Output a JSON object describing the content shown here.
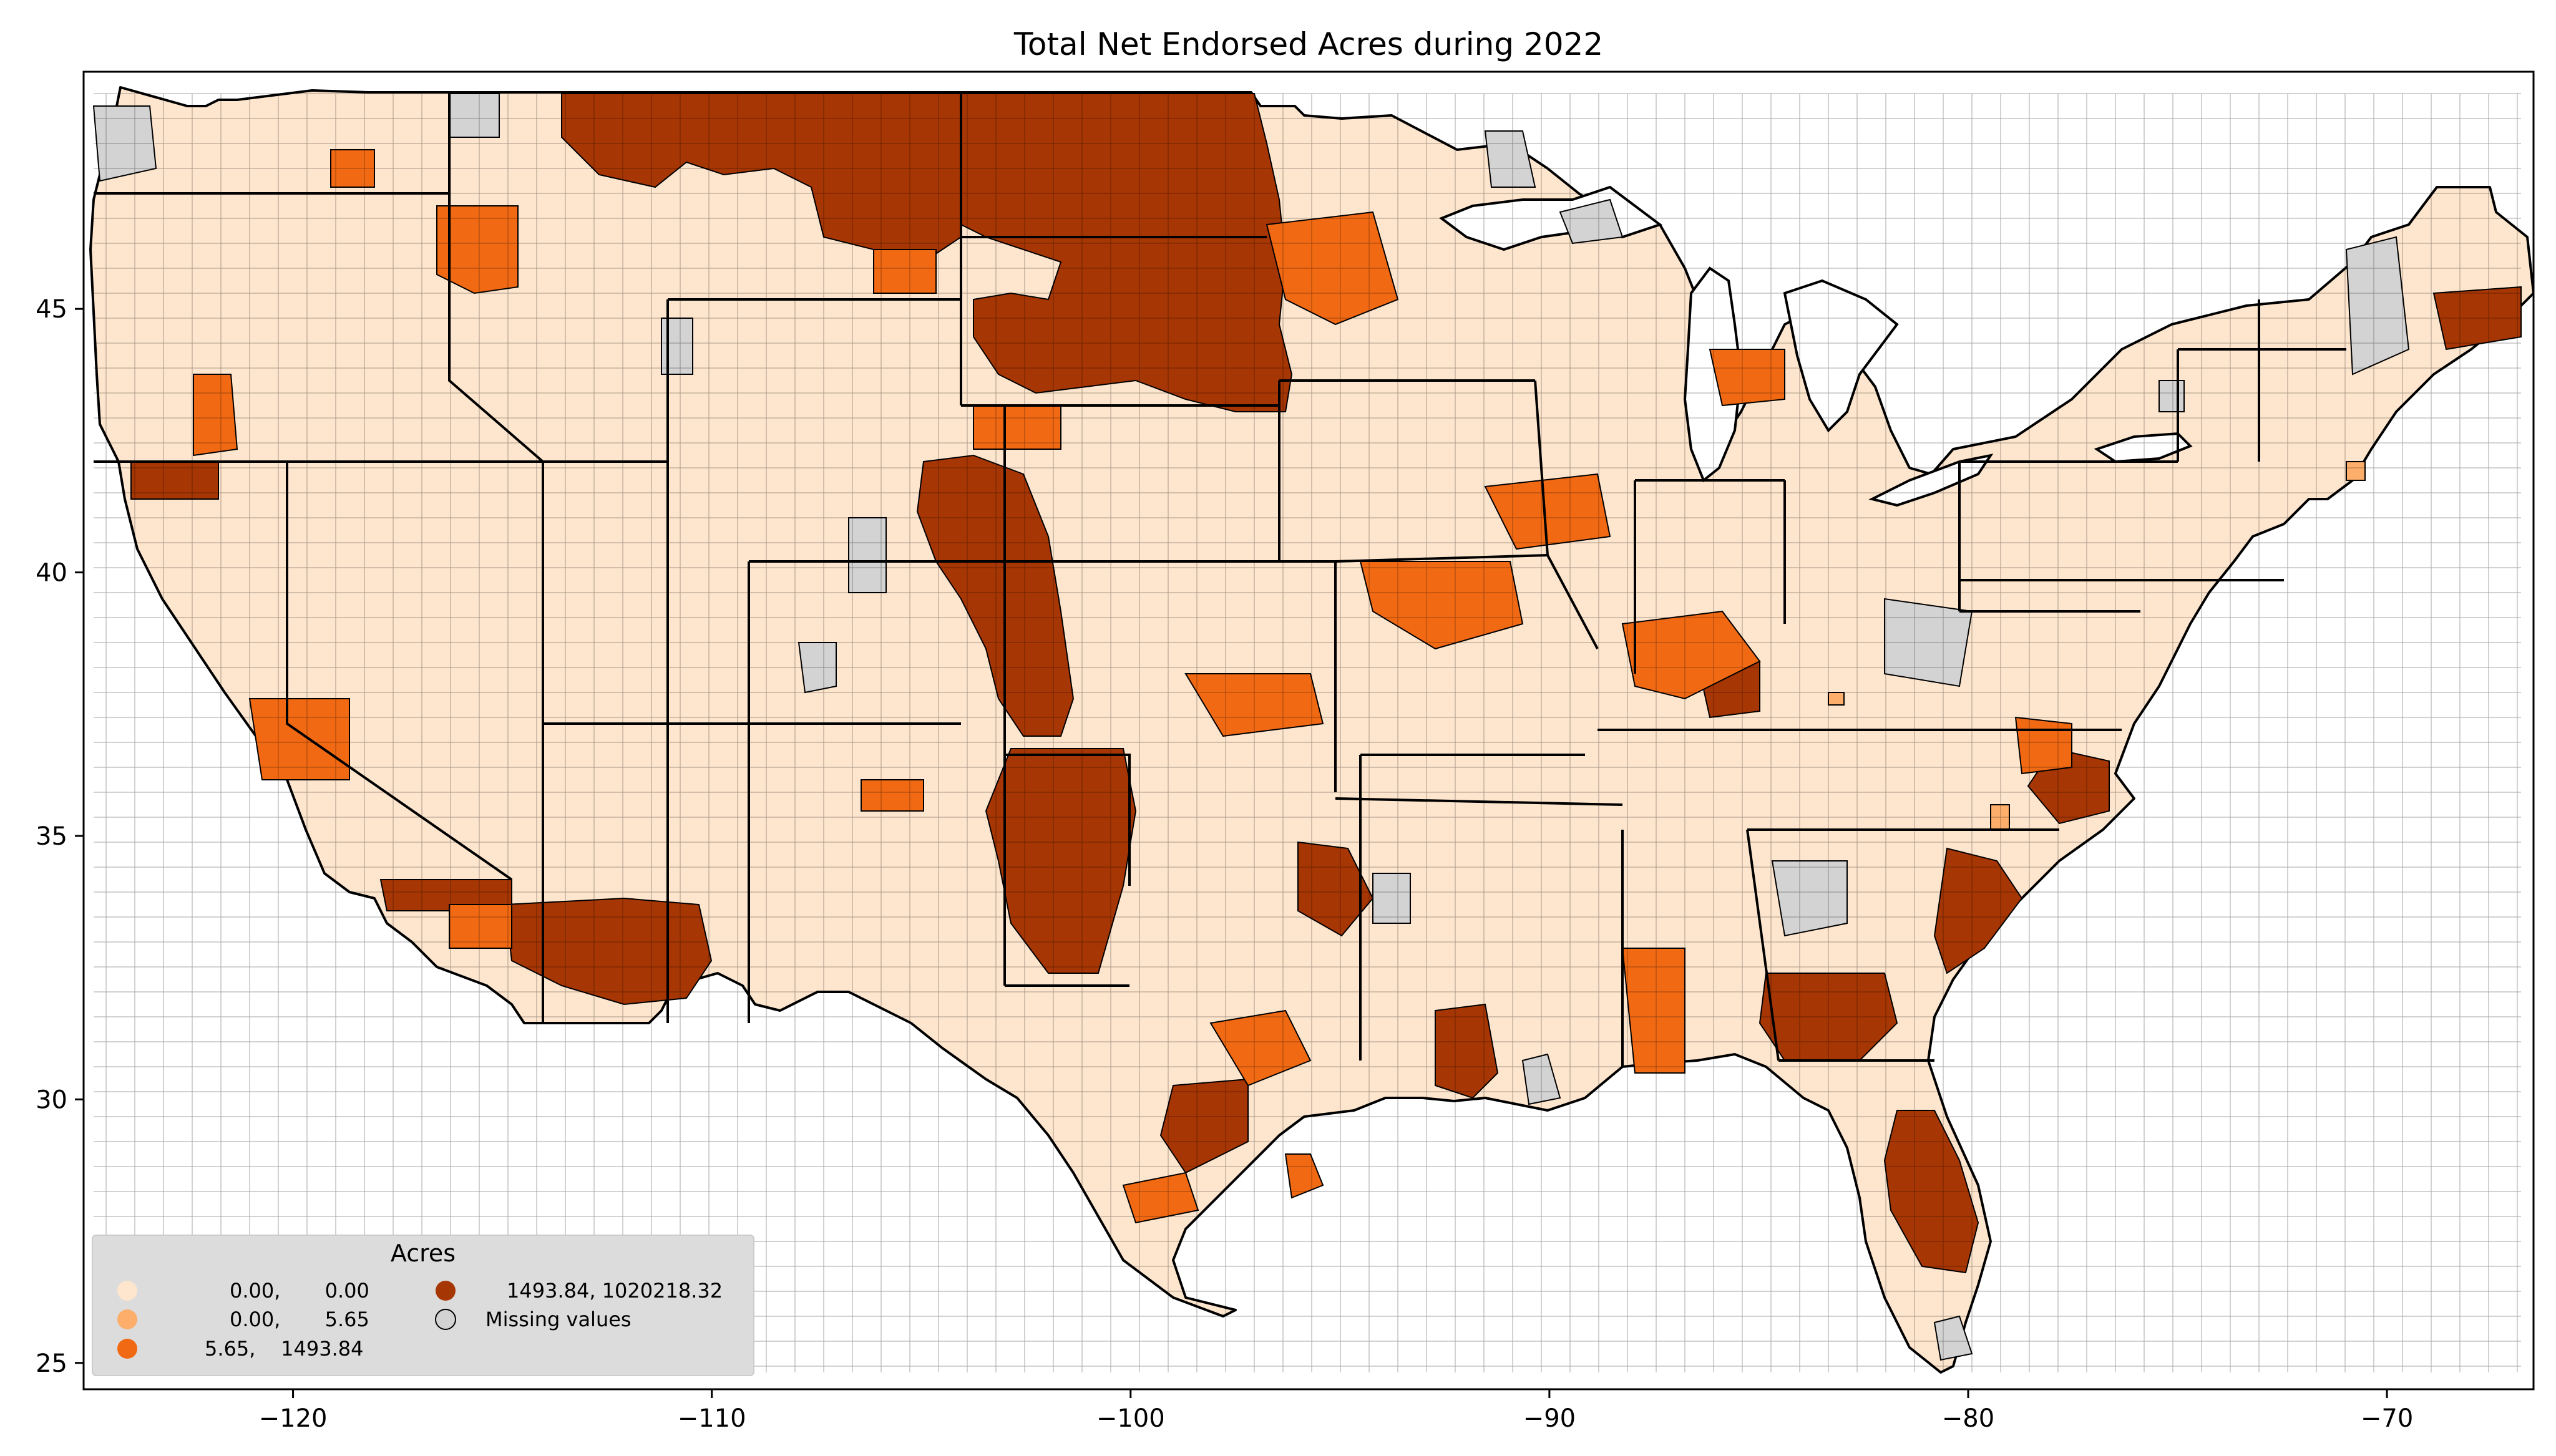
{
  "title": "Total Net Endorsed Acres during 2022",
  "colors": {
    "class1": "#fee6ce",
    "class2": "#fdae6b",
    "class3": "#f16913",
    "class4": "#a63603",
    "missing": "#d3d3d3",
    "border": "#000000",
    "legend_bg": "#dcdcdc"
  },
  "chart_data": {
    "type": "choropleth",
    "x_ticks": [
      "−120",
      "−110",
      "−100",
      "−90",
      "−80",
      "−70"
    ],
    "y_ticks": [
      "45",
      "40",
      "35",
      "30",
      "25"
    ],
    "xlim": [
      -125,
      -66.5
    ],
    "ylim": [
      24.5,
      49.5
    ],
    "legend": {
      "title": "Acres",
      "placement": "lower-left",
      "entries": [
        {
          "label": "0.00,       0.00",
          "color_key": "class1"
        },
        {
          "label": "0.00,       5.65",
          "color_key": "class2"
        },
        {
          "label": "5.65,    1493.84",
          "color_key": "class3"
        },
        {
          "label": "1493.84, 1020218.32",
          "color_key": "class4"
        },
        {
          "label": "Missing values",
          "color_key": "missing"
        }
      ]
    }
  }
}
